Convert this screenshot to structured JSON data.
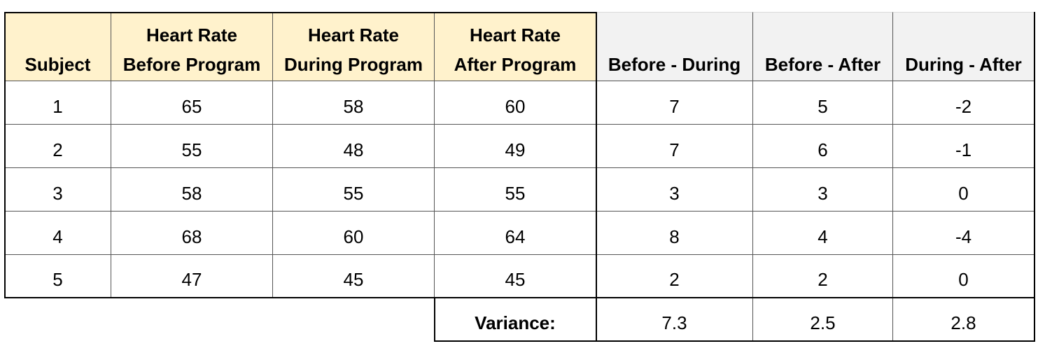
{
  "table": {
    "headers": [
      "Subject",
      "Heart Rate\nBefore Program",
      "Heart Rate\nDuring Program",
      "Heart Rate\nAfter Program",
      "Before - During",
      "Before - After",
      "During - After"
    ],
    "rows": [
      [
        1,
        65,
        58,
        60,
        7,
        5,
        -2
      ],
      [
        2,
        55,
        48,
        49,
        7,
        6,
        -1
      ],
      [
        3,
        58,
        55,
        55,
        3,
        3,
        0
      ],
      [
        4,
        68,
        60,
        64,
        8,
        4,
        -4
      ],
      [
        5,
        47,
        45,
        45,
        2,
        2,
        0
      ]
    ],
    "variance": {
      "label": "Variance:",
      "values": [
        7.3,
        2.5,
        2.8
      ]
    }
  }
}
